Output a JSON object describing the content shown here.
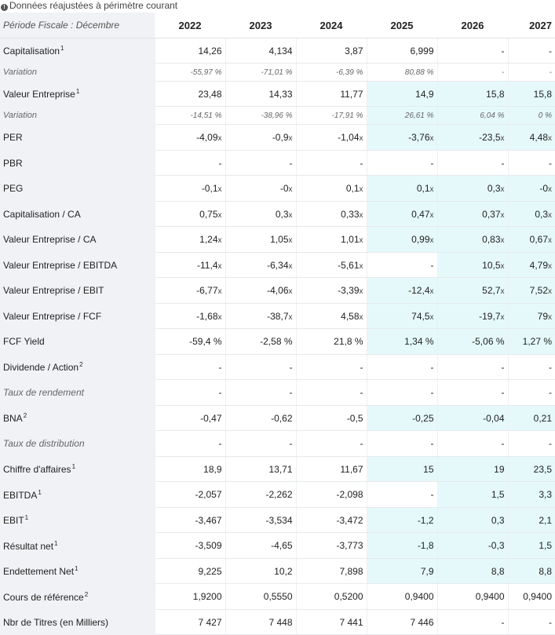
{
  "notice": "Données réajustées à périmètre courant",
  "header": {
    "period_label": "Période Fiscale : Décembre",
    "years": [
      "2022",
      "2023",
      "2024",
      "2025",
      "2026",
      "2027"
    ]
  },
  "estimate_highlight_color": "#e5f9fb",
  "rows": [
    {
      "label": "Capitalisation",
      "note": "1",
      "type": "main",
      "values": [
        "14,26",
        "4,134",
        "3,87",
        "6,999",
        "-",
        "-"
      ],
      "est": [
        false,
        false,
        false,
        false,
        false,
        false
      ]
    },
    {
      "label": "Variation",
      "note": "",
      "type": "sub",
      "values": [
        "-55,97 %",
        "-71,01 %",
        "-6,39 %",
        "80,88 %",
        "-",
        "-"
      ],
      "est": [
        false,
        false,
        false,
        false,
        false,
        false
      ]
    },
    {
      "label": "Valeur Entreprise",
      "note": "1",
      "type": "main",
      "values": [
        "23,48",
        "14,33",
        "11,77",
        "14,9",
        "15,8",
        "15,8"
      ],
      "est": [
        false,
        false,
        false,
        true,
        true,
        true
      ]
    },
    {
      "label": "Variation",
      "note": "",
      "type": "sub",
      "values": [
        "-14,51 %",
        "-38,96 %",
        "-17,91 %",
        "26,61 %",
        "6,04 %",
        "0 %"
      ],
      "est": [
        false,
        false,
        false,
        true,
        true,
        true
      ]
    },
    {
      "label": "PER",
      "note": "",
      "type": "main",
      "values": [
        "-4,09",
        "-0,9",
        "-1,04",
        "-3,76",
        "-23,5",
        "4,48"
      ],
      "suffix": "x",
      "est": [
        false,
        false,
        false,
        true,
        true,
        true
      ]
    },
    {
      "label": "PBR",
      "note": "",
      "type": "main",
      "values": [
        "-",
        "-",
        "-",
        "-",
        "-",
        "-"
      ],
      "est": [
        false,
        false,
        false,
        false,
        false,
        false
      ]
    },
    {
      "label": "PEG",
      "note": "",
      "type": "main",
      "values": [
        "-0,1",
        "-0",
        "0,1",
        "0,1",
        "0,3",
        "-0"
      ],
      "suffix": "x",
      "est": [
        false,
        false,
        false,
        true,
        true,
        true
      ]
    },
    {
      "label": "Capitalisation / CA",
      "note": "",
      "type": "main",
      "values": [
        "0,75",
        "0,3",
        "0,33",
        "0,47",
        "0,37",
        "0,3"
      ],
      "suffix": "x",
      "est": [
        false,
        false,
        false,
        true,
        true,
        true
      ]
    },
    {
      "label": "Valeur Entreprise / CA",
      "note": "",
      "type": "main",
      "values": [
        "1,24",
        "1,05",
        "1,01",
        "0,99",
        "0,83",
        "0,67"
      ],
      "suffix": "x",
      "est": [
        false,
        false,
        false,
        true,
        true,
        true
      ]
    },
    {
      "label": "Valeur Entreprise / EBITDA",
      "note": "",
      "type": "main",
      "values": [
        "-11,4",
        "-6,34",
        "-5,61",
        "-",
        "10,5",
        "4,79"
      ],
      "suffix": "x",
      "est": [
        false,
        false,
        false,
        false,
        true,
        true
      ]
    },
    {
      "label": "Valeur Entreprise / EBIT",
      "note": "",
      "type": "main",
      "values": [
        "-6,77",
        "-4,06",
        "-3,39",
        "-12,4",
        "52,7",
        "7,52"
      ],
      "suffix": "x",
      "est": [
        false,
        false,
        false,
        true,
        true,
        true
      ]
    },
    {
      "label": "Valeur Entreprise / FCF",
      "note": "",
      "type": "main",
      "values": [
        "-1,68",
        "-38,7",
        "4,58",
        "74,5",
        "-19,7",
        "79"
      ],
      "suffix": "x",
      "est": [
        false,
        false,
        false,
        true,
        true,
        true
      ]
    },
    {
      "label": "FCF Yield",
      "note": "",
      "type": "main",
      "values": [
        "-59,4 %",
        "-2,58 %",
        "21,8 %",
        "1,34 %",
        "-5,06 %",
        "1,27 %"
      ],
      "est": [
        false,
        false,
        false,
        true,
        true,
        true
      ]
    },
    {
      "label": "Dividende / Action",
      "note": "2",
      "type": "main",
      "values": [
        "-",
        "-",
        "-",
        "-",
        "-",
        "-"
      ],
      "est": [
        false,
        false,
        false,
        false,
        false,
        false
      ]
    },
    {
      "label": "Taux de rendement",
      "note": "",
      "type": "main-italic",
      "values": [
        "-",
        "-",
        "-",
        "-",
        "-",
        "-"
      ],
      "est": [
        false,
        false,
        false,
        false,
        false,
        false
      ]
    },
    {
      "label": "BNA",
      "note": "2",
      "type": "main",
      "values": [
        "-0,47",
        "-0,62",
        "-0,5",
        "-0,25",
        "-0,04",
        "0,21"
      ],
      "est": [
        false,
        false,
        false,
        true,
        true,
        true
      ]
    },
    {
      "label": "Taux de distribution",
      "note": "",
      "type": "main-italic",
      "values": [
        "-",
        "-",
        "-",
        "-",
        "-",
        "-"
      ],
      "est": [
        false,
        false,
        false,
        false,
        false,
        false
      ]
    },
    {
      "label": "Chiffre d'affaires",
      "note": "1",
      "type": "main",
      "values": [
        "18,9",
        "13,71",
        "11,67",
        "15",
        "19",
        "23,5"
      ],
      "est": [
        false,
        false,
        false,
        true,
        true,
        true
      ]
    },
    {
      "label": "EBITDA",
      "note": "1",
      "type": "main",
      "values": [
        "-2,057",
        "-2,262",
        "-2,098",
        "-",
        "1,5",
        "3,3"
      ],
      "est": [
        false,
        false,
        false,
        false,
        true,
        true
      ]
    },
    {
      "label": "EBIT",
      "note": "1",
      "type": "main",
      "values": [
        "-3,467",
        "-3,534",
        "-3,472",
        "-1,2",
        "0,3",
        "2,1"
      ],
      "est": [
        false,
        false,
        false,
        true,
        true,
        true
      ]
    },
    {
      "label": "Résultat net",
      "note": "1",
      "type": "main",
      "values": [
        "-3,509",
        "-4,65",
        "-3,773",
        "-1,8",
        "-0,3",
        "1,5"
      ],
      "est": [
        false,
        false,
        false,
        true,
        true,
        true
      ]
    },
    {
      "label": "Endettement Net",
      "note": "1",
      "type": "main",
      "values": [
        "9,225",
        "10,2",
        "7,898",
        "7,9",
        "8,8",
        "8,8"
      ],
      "est": [
        false,
        false,
        false,
        true,
        true,
        true
      ]
    },
    {
      "label": "Cours de référence",
      "note": "2",
      "type": "main",
      "values": [
        "1,9200",
        "0,5550",
        "0,5200",
        "0,9400",
        "0,9400",
        "0,9400"
      ],
      "est": [
        false,
        false,
        false,
        false,
        false,
        false
      ]
    },
    {
      "label": "Nbr de Titres (en Milliers)",
      "note": "",
      "type": "main",
      "values": [
        "7 427",
        "7 448",
        "7 441",
        "7 446",
        "-",
        "-"
      ],
      "est": [
        false,
        false,
        false,
        false,
        false,
        false
      ]
    }
  ]
}
